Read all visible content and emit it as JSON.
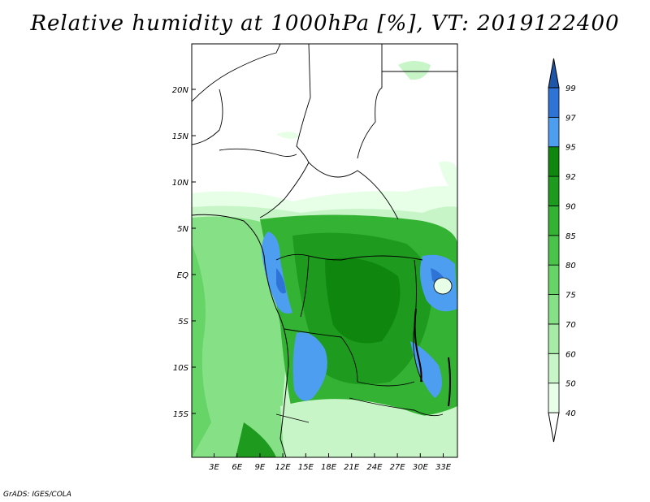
{
  "title": "Relative humidity at 1000hPa [%], VT: 2019122400",
  "credit": "GrADS: IGES/COLA",
  "map": {
    "lat_ticks": [
      "20N",
      "15N",
      "10N",
      "5N",
      "EQ",
      "5S",
      "10S",
      "15S"
    ],
    "lon_ticks": [
      "3E",
      "6E",
      "9E",
      "12E",
      "15E",
      "18E",
      "21E",
      "24E",
      "27E",
      "30E",
      "33E"
    ]
  },
  "colorbar": {
    "levels": [
      "40",
      "50",
      "60",
      "70",
      "75",
      "80",
      "85",
      "90",
      "92",
      "95",
      "97",
      "99"
    ],
    "colors": [
      "#ffffff",
      "#e6ffe6",
      "#c8f5c8",
      "#a6eba6",
      "#86e186",
      "#66d466",
      "#4ac34a",
      "#33b233",
      "#1e9a1e",
      "#0f870f",
      "#4d9ef0",
      "#2e73d6",
      "#1f55a8"
    ]
  }
}
